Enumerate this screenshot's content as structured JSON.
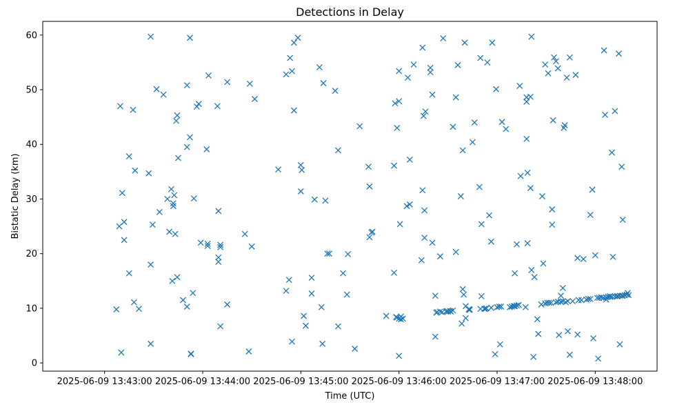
{
  "chart_data": {
    "type": "scatter",
    "title": "Detections in Delay",
    "xlabel": "Time (UTC)",
    "ylabel": "Bistatic Delay (km)",
    "marker": "x",
    "marker_color": "#1f77b4",
    "x_unit": "minutes since 2025-06-09 13:43:00",
    "xlim": [
      -0.63,
      5.63
    ],
    "ylim": [
      -1.5,
      62.5
    ],
    "x_ticks": [
      {
        "value": 0,
        "label": "2025-06-09 13:43:00"
      },
      {
        "value": 1,
        "label": "2025-06-09 13:44:00"
      },
      {
        "value": 2,
        "label": "2025-06-09 13:45:00"
      },
      {
        "value": 3,
        "label": "2025-06-09 13:46:00"
      },
      {
        "value": 4,
        "label": "2025-06-09 13:47:00"
      },
      {
        "value": 5,
        "label": "2025-06-09 13:48:00"
      }
    ],
    "y_ticks": [
      {
        "value": 0,
        "label": "0"
      },
      {
        "value": 10,
        "label": "10"
      },
      {
        "value": 20,
        "label": "20"
      },
      {
        "value": 30,
        "label": "30"
      },
      {
        "value": 40,
        "label": "40"
      },
      {
        "value": 50,
        "label": "50"
      },
      {
        "value": 60,
        "label": "60"
      }
    ],
    "series": [
      {
        "name": "detections",
        "points": [
          [
            0.12,
            9.8
          ],
          [
            0.15,
            25.0
          ],
          [
            0.16,
            47.0
          ],
          [
            0.17,
            1.9
          ],
          [
            0.18,
            31.1
          ],
          [
            0.2,
            25.8
          ],
          [
            0.2,
            22.5
          ],
          [
            0.25,
            37.8
          ],
          [
            0.25,
            16.4
          ],
          [
            0.29,
            46.3
          ],
          [
            0.3,
            11.1
          ],
          [
            0.31,
            35.2
          ],
          [
            0.35,
            9.9
          ],
          [
            0.45,
            34.7
          ],
          [
            0.47,
            18.0
          ],
          [
            0.47,
            3.5
          ],
          [
            0.47,
            59.7
          ],
          [
            0.49,
            25.3
          ],
          [
            0.53,
            50.1
          ],
          [
            0.56,
            27.6
          ],
          [
            0.6,
            49.1
          ],
          [
            0.64,
            30.0
          ],
          [
            0.66,
            24.0
          ],
          [
            0.68,
            31.8
          ],
          [
            0.69,
            15.0
          ],
          [
            0.7,
            29.2
          ],
          [
            0.7,
            28.7
          ],
          [
            0.71,
            30.7
          ],
          [
            0.72,
            23.6
          ],
          [
            0.73,
            44.3
          ],
          [
            0.74,
            45.3
          ],
          [
            0.74,
            15.7
          ],
          [
            0.75,
            37.5
          ],
          [
            0.8,
            11.5
          ],
          [
            0.84,
            39.5
          ],
          [
            0.84,
            10.3
          ],
          [
            0.84,
            50.8
          ],
          [
            0.87,
            41.3
          ],
          [
            0.87,
            59.5
          ],
          [
            0.88,
            1.7
          ],
          [
            0.88,
            1.6
          ],
          [
            0.9,
            12.8
          ],
          [
            0.91,
            30.1
          ],
          [
            0.94,
            46.9
          ],
          [
            0.96,
            47.4
          ],
          [
            0.98,
            22.0
          ],
          [
            1.04,
            39.1
          ],
          [
            1.06,
            52.6
          ],
          [
            1.05,
            21.8
          ],
          [
            1.05,
            21.4
          ],
          [
            1.15,
            47.0
          ],
          [
            1.16,
            18.5
          ],
          [
            1.16,
            19.3
          ],
          [
            1.16,
            27.8
          ],
          [
            1.18,
            21.6
          ],
          [
            1.18,
            21.2
          ],
          [
            1.18,
            6.7
          ],
          [
            1.25,
            51.4
          ],
          [
            1.25,
            10.7
          ],
          [
            1.43,
            23.6
          ],
          [
            1.47,
            2.1
          ],
          [
            1.48,
            51.1
          ],
          [
            1.5,
            21.3
          ],
          [
            1.53,
            48.3
          ],
          [
            1.77,
            35.4
          ],
          [
            1.85,
            52.8
          ],
          [
            1.85,
            13.2
          ],
          [
            1.88,
            15.2
          ],
          [
            1.89,
            55.8
          ],
          [
            1.91,
            53.4
          ],
          [
            1.93,
            46.2
          ],
          [
            1.91,
            3.9
          ],
          [
            1.93,
            58.6
          ],
          [
            1.97,
            59.5
          ],
          [
            2.0,
            36.2
          ],
          [
            2.0,
            31.4
          ],
          [
            2.01,
            35.3
          ],
          [
            2.03,
            8.6
          ],
          [
            2.05,
            6.8
          ],
          [
            2.11,
            15.6
          ],
          [
            2.11,
            12.7
          ],
          [
            2.14,
            29.9
          ],
          [
            2.19,
            54.1
          ],
          [
            2.21,
            10.2
          ],
          [
            2.22,
            3.5
          ],
          [
            2.23,
            51.2
          ],
          [
            2.25,
            29.7
          ],
          [
            2.27,
            20.0
          ],
          [
            2.29,
            20.0
          ],
          [
            2.35,
            49.8
          ],
          [
            2.38,
            38.9
          ],
          [
            2.38,
            6.7
          ],
          [
            2.43,
            16.4
          ],
          [
            2.47,
            12.5
          ],
          [
            2.48,
            19.9
          ],
          [
            2.55,
            2.6
          ],
          [
            2.6,
            43.3
          ],
          [
            2.69,
            35.9
          ],
          [
            2.7,
            32.3
          ],
          [
            2.7,
            23.0
          ],
          [
            2.73,
            24.0
          ],
          [
            2.72,
            23.9
          ],
          [
            2.87,
            8.6
          ],
          [
            2.95,
            16.5
          ],
          [
            2.95,
            36.1
          ],
          [
            2.96,
            47.5
          ],
          [
            2.97,
            8.4
          ],
          [
            2.98,
            8.3
          ],
          [
            3.0,
            8.1
          ],
          [
            3.02,
            8.5
          ],
          [
            3.02,
            8.0
          ],
          [
            2.98,
            43.0
          ],
          [
            3.0,
            47.9
          ],
          [
            3.0,
            53.4
          ],
          [
            3.0,
            1.3
          ],
          [
            3.01,
            25.4
          ],
          [
            3.04,
            8.1
          ],
          [
            3.08,
            28.7
          ],
          [
            3.09,
            52.2
          ],
          [
            3.11,
            29.0
          ],
          [
            3.11,
            37.2
          ],
          [
            3.15,
            54.6
          ],
          [
            3.23,
            18.8
          ],
          [
            3.24,
            31.6
          ],
          [
            3.24,
            57.7
          ],
          [
            3.25,
            45.2
          ],
          [
            3.26,
            27.9
          ],
          [
            3.26,
            22.9
          ],
          [
            3.27,
            46.0
          ],
          [
            3.32,
            53.2
          ],
          [
            3.32,
            54.0
          ],
          [
            3.34,
            49.1
          ],
          [
            3.34,
            22.0
          ],
          [
            3.37,
            12.3
          ],
          [
            3.37,
            4.8
          ],
          [
            3.38,
            9.2
          ],
          [
            3.39,
            9.3
          ],
          [
            3.42,
            9.4
          ],
          [
            3.42,
            19.5
          ],
          [
            3.44,
            9.3
          ],
          [
            3.45,
            59.4
          ],
          [
            3.48,
            9.4
          ],
          [
            3.49,
            9.5
          ],
          [
            3.5,
            9.4
          ],
          [
            3.52,
            9.5
          ],
          [
            3.53,
            9.4
          ],
          [
            3.55,
            9.6
          ],
          [
            3.55,
            43.2
          ],
          [
            3.58,
            20.3
          ],
          [
            3.58,
            48.6
          ],
          [
            3.6,
            54.5
          ],
          [
            3.63,
            30.5
          ],
          [
            3.64,
            7.2
          ],
          [
            3.65,
            38.9
          ],
          [
            3.65,
            13.5
          ],
          [
            3.66,
            12.5
          ],
          [
            3.67,
            58.6
          ],
          [
            3.68,
            8.2
          ],
          [
            3.68,
            10.4
          ],
          [
            3.71,
            9.8
          ],
          [
            3.72,
            9.7
          ],
          [
            3.72,
            9.8
          ],
          [
            3.75,
            40.4
          ],
          [
            3.77,
            44.0
          ],
          [
            3.82,
            32.2
          ],
          [
            3.83,
            9.9
          ],
          [
            3.83,
            55.8
          ],
          [
            3.84,
            25.4
          ],
          [
            3.84,
            12.2
          ],
          [
            3.87,
            9.9
          ],
          [
            3.88,
            9.9
          ],
          [
            3.89,
            10.0
          ],
          [
            3.9,
            55.0
          ],
          [
            3.92,
            27.0
          ],
          [
            3.94,
            10.1
          ],
          [
            3.94,
            22.2
          ],
          [
            3.95,
            58.6
          ],
          [
            3.98,
            1.6
          ],
          [
            3.99,
            50.1
          ],
          [
            4.0,
            10.2
          ],
          [
            4.02,
            10.3
          ],
          [
            4.03,
            3.4
          ],
          [
            4.04,
            10.3
          ],
          [
            4.05,
            44.1
          ],
          [
            4.09,
            42.8
          ],
          [
            4.13,
            10.2
          ],
          [
            4.15,
            10.3
          ],
          [
            4.17,
            10.4
          ],
          [
            4.18,
            10.4
          ],
          [
            4.18,
            16.4
          ],
          [
            4.2,
            10.5
          ],
          [
            4.2,
            21.7
          ],
          [
            4.22,
            10.6
          ],
          [
            4.23,
            50.7
          ],
          [
            4.24,
            34.2
          ],
          [
            4.29,
            10.2
          ],
          [
            4.3,
            47.8
          ],
          [
            4.3,
            48.6
          ],
          [
            4.31,
            34.8
          ],
          [
            4.31,
            21.9
          ],
          [
            4.3,
            41.0
          ],
          [
            4.34,
            32.0
          ],
          [
            4.34,
            48.7
          ],
          [
            4.35,
            59.7
          ],
          [
            4.35,
            17.0
          ],
          [
            4.37,
            1.1
          ],
          [
            4.38,
            15.7
          ],
          [
            4.41,
            8.0
          ],
          [
            4.42,
            5.3
          ],
          [
            4.45,
            10.7
          ],
          [
            4.46,
            30.5
          ],
          [
            4.47,
            18.2
          ],
          [
            4.49,
            10.9
          ],
          [
            4.49,
            54.6
          ],
          [
            4.51,
            11.0
          ],
          [
            4.52,
            53.0
          ],
          [
            4.53,
            11.0
          ],
          [
            4.55,
            11.0
          ],
          [
            4.56,
            25.3
          ],
          [
            4.56,
            28.1
          ],
          [
            4.57,
            44.4
          ],
          [
            4.58,
            55.9
          ],
          [
            4.6,
            55.2
          ],
          [
            4.6,
            11.1
          ],
          [
            4.62,
            11.2
          ],
          [
            4.62,
            53.9
          ],
          [
            4.63,
            5.1
          ],
          [
            4.65,
            12.3
          ],
          [
            4.65,
            11.2
          ],
          [
            4.67,
            11.3
          ],
          [
            4.67,
            13.7
          ],
          [
            4.68,
            43.0
          ],
          [
            4.69,
            43.5
          ],
          [
            4.7,
            11.1
          ],
          [
            4.71,
            52.2
          ],
          [
            4.72,
            11.3
          ],
          [
            4.72,
            5.8
          ],
          [
            4.74,
            55.9
          ],
          [
            4.74,
            1.5
          ],
          [
            4.77,
            11.3
          ],
          [
            4.8,
            52.7
          ],
          [
            4.82,
            19.2
          ],
          [
            4.82,
            5.2
          ],
          [
            4.83,
            11.5
          ],
          [
            4.86,
            11.5
          ],
          [
            4.88,
            19.0
          ],
          [
            4.91,
            11.6
          ],
          [
            4.93,
            11.7
          ],
          [
            4.95,
            27.1
          ],
          [
            4.95,
            11.7
          ],
          [
            4.97,
            31.7
          ],
          [
            4.98,
            4.5
          ],
          [
            5.0,
            19.7
          ],
          [
            5.02,
            11.9
          ],
          [
            5.03,
            0.8
          ],
          [
            5.04,
            11.9
          ],
          [
            5.06,
            12.0
          ],
          [
            5.08,
            11.9
          ],
          [
            5.09,
            57.2
          ],
          [
            5.1,
            45.4
          ],
          [
            5.11,
            12.0
          ],
          [
            5.11,
            11.6
          ],
          [
            5.13,
            12.1
          ],
          [
            5.15,
            12.1
          ],
          [
            5.15,
            12.2
          ],
          [
            5.17,
            12.1
          ],
          [
            5.17,
            38.5
          ],
          [
            5.18,
            19.4
          ],
          [
            5.2,
            12.2
          ],
          [
            5.2,
            46.1
          ],
          [
            5.22,
            12.2
          ],
          [
            5.23,
            12.2
          ],
          [
            5.24,
            56.6
          ],
          [
            5.25,
            12.3
          ],
          [
            5.25,
            3.4
          ],
          [
            5.27,
            12.3
          ],
          [
            5.27,
            35.9
          ],
          [
            5.28,
            12.3
          ],
          [
            5.28,
            26.2
          ],
          [
            5.3,
            12.4
          ],
          [
            5.32,
            12.5
          ],
          [
            5.33,
            12.8
          ],
          [
            5.34,
            12.4
          ]
        ]
      }
    ]
  }
}
